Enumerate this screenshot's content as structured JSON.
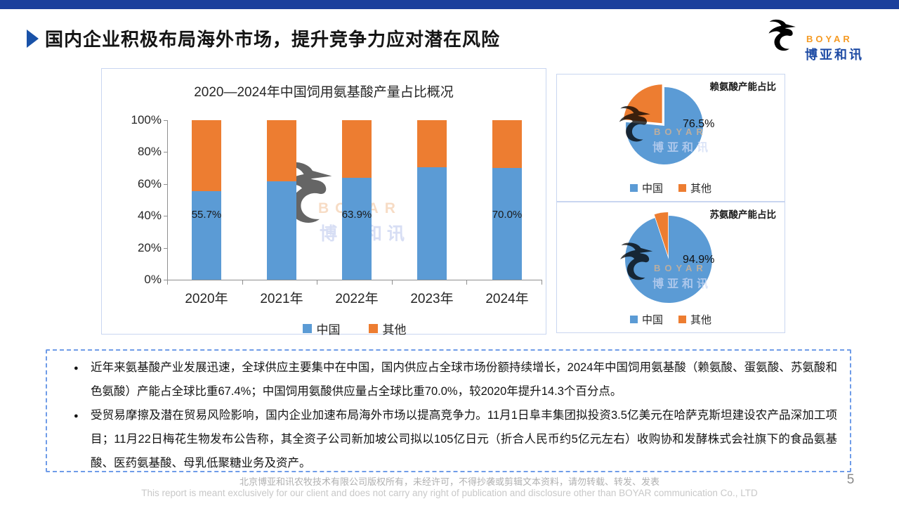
{
  "slide": {
    "title": "国内企业积极布局海外市场，提升竞争力应对潜在风险",
    "page_number": "5"
  },
  "logo": {
    "name_en": "BOYAR",
    "name_cn": "博亚和讯"
  },
  "watermark": {
    "text_en": "BOYAR",
    "text_cn": "博亚和讯"
  },
  "colors": {
    "china": "#5B9BD5",
    "other": "#ED7D31",
    "top_bar": "#1B3F9C",
    "title_marker": "#1952A8",
    "logo_orange": "#F59A23",
    "logo_blue": "#1E4BA4",
    "panel_border": "#c9d6f0",
    "notes_border": "#6f9ce8"
  },
  "chart_data": [
    {
      "type": "bar",
      "stacked": true,
      "title": "2020—2024年中国饲用氨基酸产量占比概况",
      "categories": [
        "2020年",
        "2021年",
        "2022年",
        "2023年",
        "2024年"
      ],
      "series": [
        {
          "name": "中国",
          "color": "#5B9BD5",
          "values": [
            55.7,
            61.8,
            63.9,
            70.4,
            70.0
          ]
        },
        {
          "name": "其他",
          "color": "#ED7D31",
          "values": [
            44.3,
            38.2,
            36.1,
            29.6,
            30.0
          ]
        }
      ],
      "data_labels": [
        "55.7%",
        "",
        "63.9%",
        "",
        "70.0%"
      ],
      "y_ticks": [
        "0%",
        "20%",
        "40%",
        "60%",
        "80%",
        "100%"
      ],
      "ylim": [
        0,
        100
      ],
      "grid": false,
      "legend_position": "bottom"
    },
    {
      "type": "pie",
      "title": "赖氨酸产能占比",
      "slices": [
        {
          "name": "中国",
          "value": 76.5,
          "color": "#5B9BD5"
        },
        {
          "name": "其他",
          "value": 23.5,
          "color": "#ED7D31"
        }
      ],
      "data_label": "76.5%",
      "legend_position": "bottom"
    },
    {
      "type": "pie",
      "title": "苏氨酸产能占比",
      "slices": [
        {
          "name": "中国",
          "value": 94.9,
          "color": "#5B9BD5"
        },
        {
          "name": "其他",
          "value": 5.1,
          "color": "#ED7D31"
        }
      ],
      "data_label": "94.9%",
      "legend_position": "bottom"
    }
  ],
  "bullets": [
    "近年来氨基酸产业发展迅速，全球供应主要集中在中国，国内供应占全球市场份额持续增长，2024年中国饲用氨基酸（赖氨酸、蛋氨酸、苏氨酸和色氨酸）产能占全球比重67.4%；中国饲用氨酸供应量占全球比重70.0%，较2020年提升14.3个百分点。",
    "受贸易摩擦及潜在贸易风险影响，国内企业加速布局海外市场以提高竞争力。11月1日阜丰集团拟投资3.5亿美元在哈萨克斯坦建设农产品深加工项目；11月22日梅花生物发布公告称，其全资子公司新加坡公司拟以105亿日元（折合人民币约5亿元左右）收购协和发酵株式会社旗下的食品氨基酸、医药氨基酸、母乳低聚糖业务及资产。"
  ],
  "footer": {
    "line1": "北京博亚和讯农牧技术有限公司版权所有，未经许可，不得抄袭或剪辑文本资料，请勿转载、转发、发表",
    "line2": "This report is meant exclusively for our client and does not carry any right of publication and disclosure other than BOYAR communication Co., LTD"
  }
}
